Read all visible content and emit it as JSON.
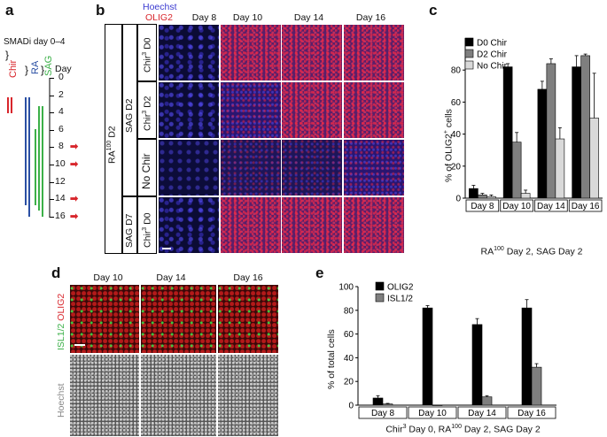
{
  "panel_a": {
    "label": "a",
    "title": "SMADi day 0–4",
    "chir_label": "Chir",
    "ra_label": "RA",
    "sag_label": "SAG",
    "day_label": "Day",
    "day_ticks": [
      "0",
      "2",
      "4",
      "6",
      "8",
      "10",
      "12",
      "14",
      "16"
    ],
    "arrow_days": [
      "8",
      "10",
      "14",
      "16"
    ],
    "colors": {
      "chir": "#d8262c",
      "ra": "#2a4fa3",
      "sag": "#3cb049",
      "arrow": "#d8262c"
    }
  },
  "panel_b": {
    "label": "b",
    "hoechst_label": "Hoechst",
    "olig2_label": "OLIG2",
    "days": [
      "Day 8",
      "Day 10",
      "Day 14",
      "Day 16"
    ],
    "ra_group": "RA",
    "ra_sup": "100",
    "ra_suffix": " D2",
    "sag_d2": "SAG D2",
    "sag_d7": "SAG D7",
    "rows": [
      {
        "chir": "Chir",
        "chir_sup": "3",
        "chir_day": " D0"
      },
      {
        "chir": "Chir",
        "chir_sup": "3",
        "chir_day": " D2"
      },
      {
        "chir": "No Chir",
        "chir_sup": "",
        "chir_day": ""
      },
      {
        "chir": "Chir",
        "chir_sup": "3",
        "chir_day": " D0"
      }
    ],
    "colors": {
      "hoechst": "#3a3ad0",
      "olig2": "#d8262c"
    }
  },
  "panel_c": {
    "label": "c",
    "chart_data": {
      "type": "bar",
      "categories": [
        "Day 8",
        "Day 10",
        "Day 14",
        "Day 16"
      ],
      "series": [
        {
          "name": "D0 Chir",
          "values": [
            6,
            82,
            68,
            82
          ],
          "errors": [
            2,
            2,
            5,
            7
          ],
          "color": "#000000"
        },
        {
          "name": "D2 Chir",
          "values": [
            2,
            35,
            84,
            89
          ],
          "errors": [
            1,
            6,
            3,
            1
          ],
          "color": "#7f7f7f"
        },
        {
          "name": "No Chir",
          "values": [
            1,
            3,
            37,
            50
          ],
          "errors": [
            1,
            2,
            7,
            28
          ],
          "color": "#d9d9d9"
        }
      ],
      "ylabel_prefix": "% of OLIG2",
      "ylabel_sup": "+",
      "ylabel_suffix": " cells",
      "ylim": [
        0,
        100
      ],
      "yticks": [
        0,
        20,
        40,
        60,
        80
      ],
      "xlabel_prefix": "RA",
      "xlabel_sup": "100",
      "xlabel_suffix": " Day 2, SAG Day 2",
      "legend": "top-left"
    }
  },
  "panel_d": {
    "label": "d",
    "days": [
      "Day 10",
      "Day 14",
      "Day 16"
    ],
    "row1_label_a": "ISL1/2",
    "row1_label_b": "OLIG2",
    "row2_label": "Hoechst",
    "colors": {
      "isl": "#3cb049",
      "olig2": "#d8262c"
    }
  },
  "panel_e": {
    "label": "e",
    "chart_data": {
      "type": "bar",
      "categories": [
        "Day 8",
        "Day 10",
        "Day 14",
        "Day 16"
      ],
      "series": [
        {
          "name": "OLIG2",
          "values": [
            6,
            82,
            68,
            82
          ],
          "errors": [
            2,
            2,
            5,
            7
          ],
          "color": "#000000"
        },
        {
          "name": "ISL1/2",
          "values": [
            1,
            0,
            7,
            32
          ],
          "errors": [
            0.5,
            0,
            1,
            3
          ],
          "color": "#7f7f7f"
        }
      ],
      "ylabel": "% of total cells",
      "ylim": [
        0,
        100
      ],
      "yticks": [
        0,
        20,
        40,
        60,
        80,
        100
      ],
      "xlabel_prefix": "Chir",
      "xlabel_sup": "3",
      "xlabel_mid": " Day 0, RA",
      "xlabel_sup2": "100",
      "xlabel_suffix": " Day 2, SAG Day 2",
      "legend": "top-left"
    }
  }
}
